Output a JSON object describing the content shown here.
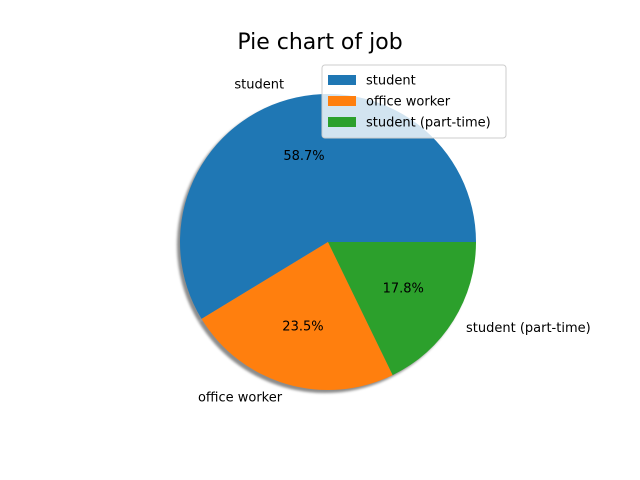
{
  "chart_data": {
    "type": "pie",
    "title": "Pie chart of job",
    "categories": [
      "student",
      "office worker",
      "student (part-time)"
    ],
    "values": [
      58.7,
      23.5,
      17.8
    ],
    "value_labels": [
      "58.7%",
      "23.5%",
      "17.8%"
    ],
    "colors": [
      "#1f77b4",
      "#ff7f0e",
      "#2ca02c"
    ],
    "start_angle_deg": 0,
    "direction": "counterclockwise",
    "shadow": true,
    "legend": {
      "placement": "top-right",
      "entries": [
        "student",
        "office worker",
        "student (part-time)"
      ]
    }
  }
}
